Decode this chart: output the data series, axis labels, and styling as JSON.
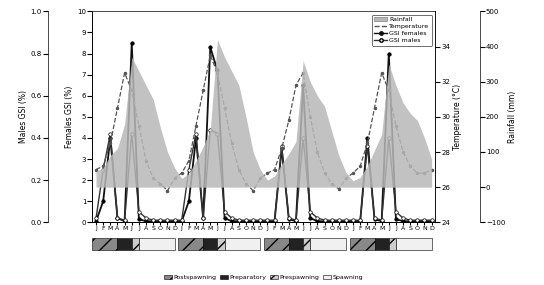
{
  "months_label": [
    "J",
    "F",
    "M",
    "A",
    "M",
    "J",
    "J",
    "A",
    "S",
    "O",
    "N",
    "D",
    "J",
    "F",
    "M",
    "A",
    "M",
    "J",
    "J",
    "A",
    "S",
    "O",
    "N",
    "D",
    "J",
    "F",
    "M",
    "A",
    "M",
    "J",
    "J",
    "A",
    "S",
    "O",
    "N",
    "D",
    "J",
    "F",
    "M",
    "A",
    "M",
    "J",
    "J",
    "A",
    "S",
    "O",
    "N",
    "D"
  ],
  "n_points": 48,
  "rainfall": [
    45,
    55,
    90,
    110,
    180,
    370,
    330,
    290,
    250,
    170,
    100,
    55,
    25,
    38,
    75,
    115,
    165,
    420,
    370,
    330,
    290,
    200,
    100,
    50,
    20,
    32,
    65,
    95,
    130,
    360,
    300,
    260,
    230,
    160,
    90,
    42,
    18,
    28,
    60,
    105,
    150,
    350,
    290,
    240,
    210,
    190,
    140,
    80
  ],
  "temperature": [
    27.0,
    27.2,
    28.5,
    30.5,
    32.5,
    31.5,
    29.5,
    27.5,
    26.5,
    26.2,
    25.8,
    26.5,
    26.8,
    27.5,
    29.5,
    31.5,
    33.5,
    32.5,
    30.5,
    28.5,
    27.0,
    26.2,
    25.8,
    26.5,
    26.8,
    27.0,
    28.2,
    29.8,
    31.8,
    32.5,
    30.0,
    28.0,
    26.8,
    26.2,
    25.9,
    26.5,
    26.8,
    27.2,
    28.5,
    30.5,
    32.5,
    31.5,
    29.5,
    28.0,
    27.2,
    26.8,
    26.8,
    27.0
  ],
  "gsi_females_full": [
    0.05,
    1.0,
    4.0,
    0.2,
    0.05,
    8.5,
    0.15,
    0.05,
    0.05,
    0.05,
    0.05,
    0.05,
    0.05,
    1.0,
    4.0,
    0.2,
    8.3,
    7.2,
    0.2,
    0.05,
    0.05,
    0.05,
    0.05,
    0.05,
    0.05,
    0.05,
    3.5,
    0.15,
    0.05,
    6.5,
    0.2,
    0.05,
    0.05,
    0.05,
    0.05,
    0.05,
    0.05,
    0.05,
    4.0,
    0.15,
    0.05,
    8.0,
    0.15,
    0.05,
    0.05,
    0.05,
    0.05,
    0.05
  ],
  "gsi_males_full": [
    0.02,
    0.25,
    0.42,
    0.02,
    0.01,
    0.42,
    0.05,
    0.02,
    0.01,
    0.01,
    0.01,
    0.01,
    0.01,
    0.25,
    0.42,
    0.02,
    0.44,
    0.42,
    0.05,
    0.02,
    0.01,
    0.01,
    0.01,
    0.01,
    0.01,
    0.01,
    0.36,
    0.02,
    0.01,
    0.4,
    0.05,
    0.02,
    0.01,
    0.01,
    0.01,
    0.01,
    0.01,
    0.01,
    0.36,
    0.02,
    0.01,
    0.4,
    0.05,
    0.02,
    0.01,
    0.01,
    0.01,
    0.01
  ],
  "rainfall_color": "#b8b8b8",
  "temperature_color": "#555555",
  "gsi_females_color": "#111111",
  "gsi_males_color": "#333333",
  "ylabel_males": "Males GSI (%)",
  "ylabel_females": "Females GSI (%)",
  "ylabel_temp": "Temperature (°C)",
  "ylabel_rainfall": "Rainfall (mm)",
  "ylim_females": [
    0,
    10
  ],
  "ylim_males": [
    0.0,
    1.0
  ],
  "ylim_temp": [
    24,
    36
  ],
  "ylim_rainfall": [
    -100,
    500
  ],
  "temp_yticks": [
    24,
    26,
    28,
    30,
    32,
    34
  ],
  "rainfall_yticks": [
    -100,
    0,
    100,
    200,
    300,
    400,
    500
  ],
  "females_yticks": [
    0,
    1,
    2,
    3,
    4,
    5,
    6,
    7,
    8,
    9,
    10
  ],
  "males_yticks": [
    0.0,
    0.2,
    0.4,
    0.6,
    0.8,
    1.0
  ],
  "phase_defs": [
    {
      "s": 0,
      "e": 3.5,
      "color": "#888888",
      "hatch": "//"
    },
    {
      "s": 3.5,
      "e": 5.5,
      "color": "#222222",
      "hatch": ""
    },
    {
      "s": 5.5,
      "e": 6.5,
      "color": "#cccccc",
      "hatch": "//"
    },
    {
      "s": 6.5,
      "e": 11.5,
      "color": "#f0f0f0",
      "hatch": ""
    }
  ],
  "legend_rainfall": "Rainfall",
  "legend_temp": "Temperature",
  "legend_females": "GSI females",
  "legend_males": "GSI males",
  "phase_labels": [
    "Postspawning",
    "Preparatory",
    "Prespawning",
    "Spawning"
  ],
  "phase_legend_colors": [
    "#888888",
    "#222222",
    "#cccccc",
    "#f0f0f0"
  ],
  "phase_legend_hatches": [
    "//",
    "",
    "//",
    ""
  ]
}
